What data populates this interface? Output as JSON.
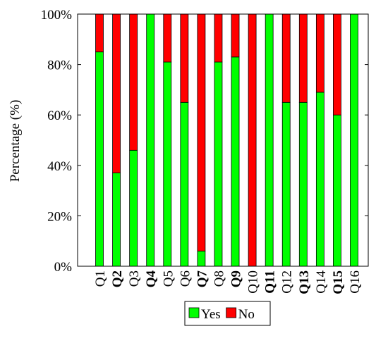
{
  "chart_data": {
    "type": "stacked-bar",
    "y_label": "Percentage (%)",
    "categories": [
      "Q1",
      "Q2",
      "Q3",
      "Q4",
      "Q5",
      "Q6",
      "Q7",
      "Q8",
      "Q9",
      "Q10",
      "Q11",
      "Q12",
      "Q13",
      "Q14",
      "Q15",
      "Q16"
    ],
    "category_bold": [
      false,
      true,
      false,
      true,
      false,
      false,
      true,
      false,
      true,
      false,
      true,
      false,
      true,
      false,
      true,
      false
    ],
    "series": [
      {
        "name": "Yes",
        "color": "#00ff00",
        "values": [
          85,
          37,
          46,
          100,
          81,
          65,
          6,
          81,
          83,
          0,
          100,
          65,
          65,
          69,
          60,
          100
        ]
      },
      {
        "name": "No",
        "color": "#ff0000",
        "values": [
          15,
          63,
          54,
          0,
          19,
          35,
          94,
          19,
          17,
          100,
          0,
          35,
          35,
          31,
          40,
          0
        ]
      }
    ],
    "ylim": [
      0,
      100
    ],
    "yticks": [
      {
        "value": 0,
        "label": "0%"
      },
      {
        "value": 20,
        "label": "20%"
      },
      {
        "value": 40,
        "label": "40%"
      },
      {
        "value": 60,
        "label": "60%"
      },
      {
        "value": 80,
        "label": "80%"
      },
      {
        "value": 100,
        "label": "100%"
      }
    ],
    "legend": "bottom"
  }
}
